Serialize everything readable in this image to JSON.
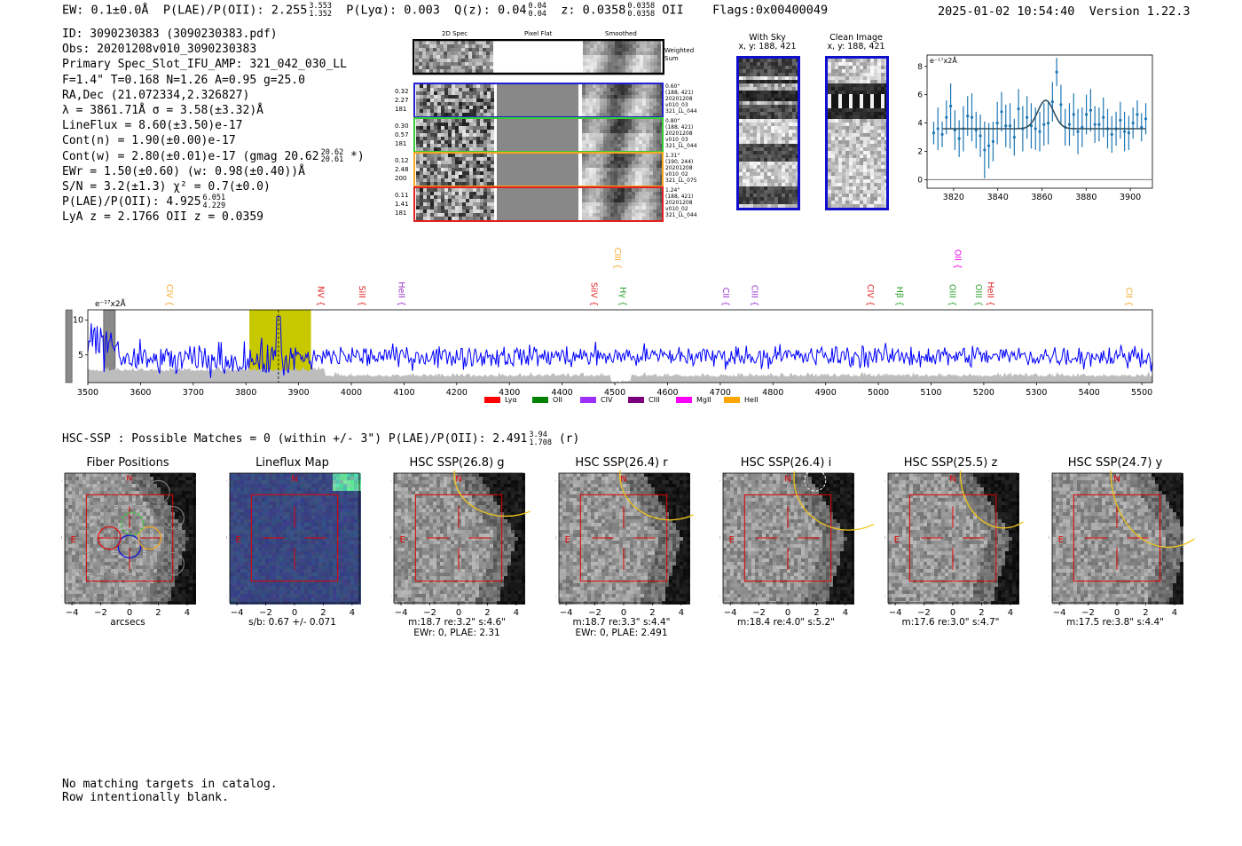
{
  "header": {
    "ew": "EW: 0.1±0.0Å",
    "plae_label": "P(LAE)/P(OII): 2.255",
    "plae_hi": "3.553",
    "plae_lo": "1.352",
    "plya": "P(Lyα): 0.003",
    "qz": "Q(z): 0.04",
    "qz_hi": "0.04",
    "qz_lo": "0.04",
    "z": "z: 0.0358",
    "z_hi": "0.0358",
    "z_lo": "0.0358",
    "z_line": "OII",
    "flags": "Flags:0x00400049",
    "datetime": "2025-01-02 10:54:40",
    "version": "Version 1.22.3"
  },
  "info": {
    "id": "ID: 3090230383 (3090230383.pdf)",
    "obs": "Obs: 20201208v010_3090230383",
    "primary": "Primary Spec_Slot_IFU_AMP: 321_042_030_LL",
    "params": "F=1.4\"  T=0.168  N=1.26  A=0.95  g=25.0",
    "radec": "RA,Dec (21.072334,2.326827)",
    "lambda": "λ = 3861.71Å  σ = 3.58(±3.32)Å",
    "lineflux": "LineFlux = 8.60(±3.50)e-17",
    "contn": "Cont(n) = 1.90(±0.00)e-17",
    "contw": "Cont(w) = 2.80(±0.01)e-17 (gmag 20.62",
    "contw_hi": "20.62",
    "contw_lo": "20.61",
    "contw_tail": "*)",
    "ewr": "EWr = 1.50(±0.60) (w: 0.98(±0.40))Å",
    "sn": "S/N = 3.2(±1.3)  χ² = 0.7(±0.0)",
    "plae": "P(LAE)/P(OII): 4.925",
    "plae_hi": "6.051",
    "plae_lo": "4.229",
    "lya": "LyA z = 2.1766  OII z = 0.0359"
  },
  "cutouts": {
    "col_headers": [
      "2D Spec",
      "Pixel Flat",
      "Smoothed"
    ],
    "weighted_sum": "Weighted Sum",
    "rows": [
      {
        "left": [
          "0.32",
          "2.27",
          "181"
        ],
        "right": [
          "0.60\"",
          "(188, 421)",
          "20201208",
          "v010_03",
          "321_LL_044"
        ],
        "color": "#1f1fd0"
      },
      {
        "left": [
          "0.30",
          "0.57",
          "181"
        ],
        "right": [
          "0.80\"",
          "(188, 421)",
          "20201208",
          "v010_03",
          "321_LL_044"
        ],
        "color": "#33cc33"
      },
      {
        "left": [
          "0.12",
          "2.48",
          "200"
        ],
        "right": [
          "1.31\"",
          "(190, 244)",
          "20201208",
          "v010_02",
          "321_LL_075"
        ],
        "color": "#f5a623"
      },
      {
        "left": [
          "0.11",
          "1.41",
          "181"
        ],
        "right": [
          "1.24\"",
          "(188, 421)",
          "20201208",
          "v010_02",
          "321_LL_044"
        ],
        "color": "#e02020"
      }
    ]
  },
  "sky": {
    "with_sky": "With Sky",
    "with_sky_xy": "x, y: 188, 421",
    "clean": "Clean Image",
    "clean_xy": "x, y: 188, 421"
  },
  "fit_chart": {
    "ylabel": "e⁻¹⁷x2Å"
  },
  "spectrum": {
    "ylabel": "e⁻¹⁷x2Å",
    "lines": [
      {
        "label": "CIV",
        "wave": 3645,
        "color": "#f5a623",
        "row": 0
      },
      {
        "label": "NV",
        "wave": 3932,
        "color": "#e02020",
        "row": 0
      },
      {
        "label": "SiII",
        "wave": 4010,
        "color": "#e02020",
        "row": 0
      },
      {
        "label": "HeII",
        "wave": 4085,
        "color": "#9933cc",
        "row": 0
      },
      {
        "label": "SiIV",
        "wave": 4450,
        "color": "#e02020",
        "row": 0
      },
      {
        "label": "Hγ",
        "wave": 4505,
        "color": "#2ca02c",
        "row": 0
      },
      {
        "label": "CIII",
        "wave": 4495,
        "color": "#f5a623",
        "row": 1
      },
      {
        "label": "CII",
        "wave": 4700,
        "color": "#9933cc",
        "row": 0
      },
      {
        "label": "CIII",
        "wave": 4755,
        "color": "#9933cc",
        "row": 0
      },
      {
        "label": "CIV",
        "wave": 4975,
        "color": "#e02020",
        "row": 0
      },
      {
        "label": "Hβ",
        "wave": 5030,
        "color": "#2ca02c",
        "row": 0
      },
      {
        "label": "OIII",
        "wave": 5130,
        "color": "#2ca02c",
        "row": 0
      },
      {
        "label": "OII",
        "wave": 5140,
        "color": "#ee00ee",
        "row": 1
      },
      {
        "label": "OIII",
        "wave": 5180,
        "color": "#2ca02c",
        "row": 0
      },
      {
        "label": "HeII",
        "wave": 5203,
        "color": "#e02020",
        "row": 0
      },
      {
        "label": "CII",
        "wave": 5465,
        "color": "#f5a623",
        "row": 0
      }
    ],
    "legend": [
      {
        "label": "Lyα",
        "color": "#ff0000"
      },
      {
        "label": "OII",
        "color": "#008000"
      },
      {
        "label": "CIV",
        "color": "#9b30ff"
      },
      {
        "label": "CIII",
        "color": "#7b007b"
      },
      {
        "label": "MgII",
        "color": "#ff00ff"
      },
      {
        "label": "HeII",
        "color": "#ffa500"
      }
    ]
  },
  "hsc": {
    "title": "HSC-SSP : Possible Matches = 0 (within +/- 3\")  P(LAE)/P(OII): 2.491",
    "title_hi": "3.94",
    "title_lo": "1.708",
    "title_band": "(r)",
    "panels": [
      {
        "title": "Fiber Positions",
        "cap1": "arcsecs",
        "cap2": ""
      },
      {
        "title": "Lineflux Map",
        "cap1": "s/b: 0.67 +/- 0.071",
        "cap2": ""
      },
      {
        "title": "HSC SSP(26.8) g",
        "cap1": "m:18.7  re:3.2\"  s:4.6\"",
        "cap2": "EWr: 0, PLAE: 2.31"
      },
      {
        "title": "HSC SSP(26.4) r",
        "cap1": "m:18.7  re:3.3\"  s:4.4\"",
        "cap2": "EWr: 0, PLAE: 2.491"
      },
      {
        "title": "HSC SSP(26.4) i",
        "cap1": "m:18.4  re:4.0\"  s:5.2\"",
        "cap2": ""
      },
      {
        "title": "HSC SSP(25.5) z",
        "cap1": "m:17.6  re:3.0\"  s:4.7\"",
        "cap2": ""
      },
      {
        "title": "HSC SSP(24.7) y",
        "cap1": "m:17.5  re:3.8\"  s:4.4\"",
        "cap2": ""
      }
    ],
    "compass_n": "N",
    "compass_e": "E"
  },
  "footer": {
    "line1": "No matching targets in catalog.",
    "line2": "Row intentionally blank."
  },
  "chart_data": [
    {
      "type": "scatter",
      "title": "",
      "xlabel": "",
      "ylabel": "e⁻¹⁷x2Å",
      "xlim": [
        3808,
        3910
      ],
      "ylim": [
        -0.6,
        8.8
      ],
      "xticks": [
        3820,
        3840,
        3860,
        3880,
        3900
      ],
      "yticks": [
        0,
        2,
        4,
        6,
        8
      ],
      "points_y": [
        3.3,
        3.6,
        3.2,
        4.4,
        5.2,
        3.5,
        2.9,
        3.6,
        4.5,
        4.4,
        3.5,
        3.1,
        2.1,
        2.4,
        2.7,
        4.0,
        4.8,
        3.8,
        3.8,
        3.0,
        5.0,
        3.6,
        4.4,
        3.8,
        3.6,
        3.4,
        3.9,
        4.0,
        5.5,
        7.6,
        5.3,
        3.7,
        3.9,
        4.6,
        3.4,
        3.7,
        4.6,
        4.9,
        3.9,
        3.9,
        4.4,
        3.6,
        3.2,
        3.6,
        4.2,
        3.4,
        3.3,
        4.0,
        4.6,
        3.7,
        4.3
      ],
      "errors": [
        0.8,
        1.5,
        0.9,
        1.2,
        1.6,
        1.4,
        1.3,
        1.6,
        1.4,
        1.7,
        1.3,
        1.5,
        2.0,
        1.6,
        1.4,
        1.5,
        1.4,
        1.5,
        1.6,
        1.3,
        1.4,
        1.6,
        1.5,
        1.6,
        1.5,
        1.4,
        1.5,
        1.5,
        1.4,
        1.0,
        1.4,
        1.3,
        1.5,
        1.5,
        1.6,
        1.4,
        1.4,
        1.5,
        1.3,
        1.2,
        1.4,
        1.4,
        1.3,
        1.2,
        1.3,
        1.4,
        1.2,
        1.1,
        1.0,
        1.0,
        1.1
      ],
      "model": {
        "continuum": 3.6,
        "amplitude": 2.0,
        "center": 3861.7,
        "sigma": 3.6
      }
    },
    {
      "type": "line",
      "title": "",
      "xlabel": "",
      "ylabel": "e⁻¹⁷x2Å",
      "xlim": [
        3500,
        5520
      ],
      "ylim": [
        1.0,
        11.5
      ],
      "xticks": [
        3500,
        3600,
        3700,
        3800,
        3900,
        4000,
        4100,
        4200,
        4300,
        4400,
        4500,
        4600,
        4700,
        4800,
        4900,
        5000,
        5100,
        5200,
        5300,
        5400,
        5500
      ],
      "yticks": [
        5,
        10
      ],
      "highlight_band": [
        3820,
        3910
      ],
      "line_center": 3861.7,
      "masked": [
        [
          3530,
          3552
        ],
        [
          3458,
          3470
        ]
      ],
      "series": [
        {
          "name": "flux",
          "color": "#0000ff",
          "continuum": 4.6,
          "noise": 1.4
        },
        {
          "name": "error",
          "color": "#b0b0b0",
          "continuum": 2.0,
          "noise": 0.4
        }
      ]
    }
  ]
}
